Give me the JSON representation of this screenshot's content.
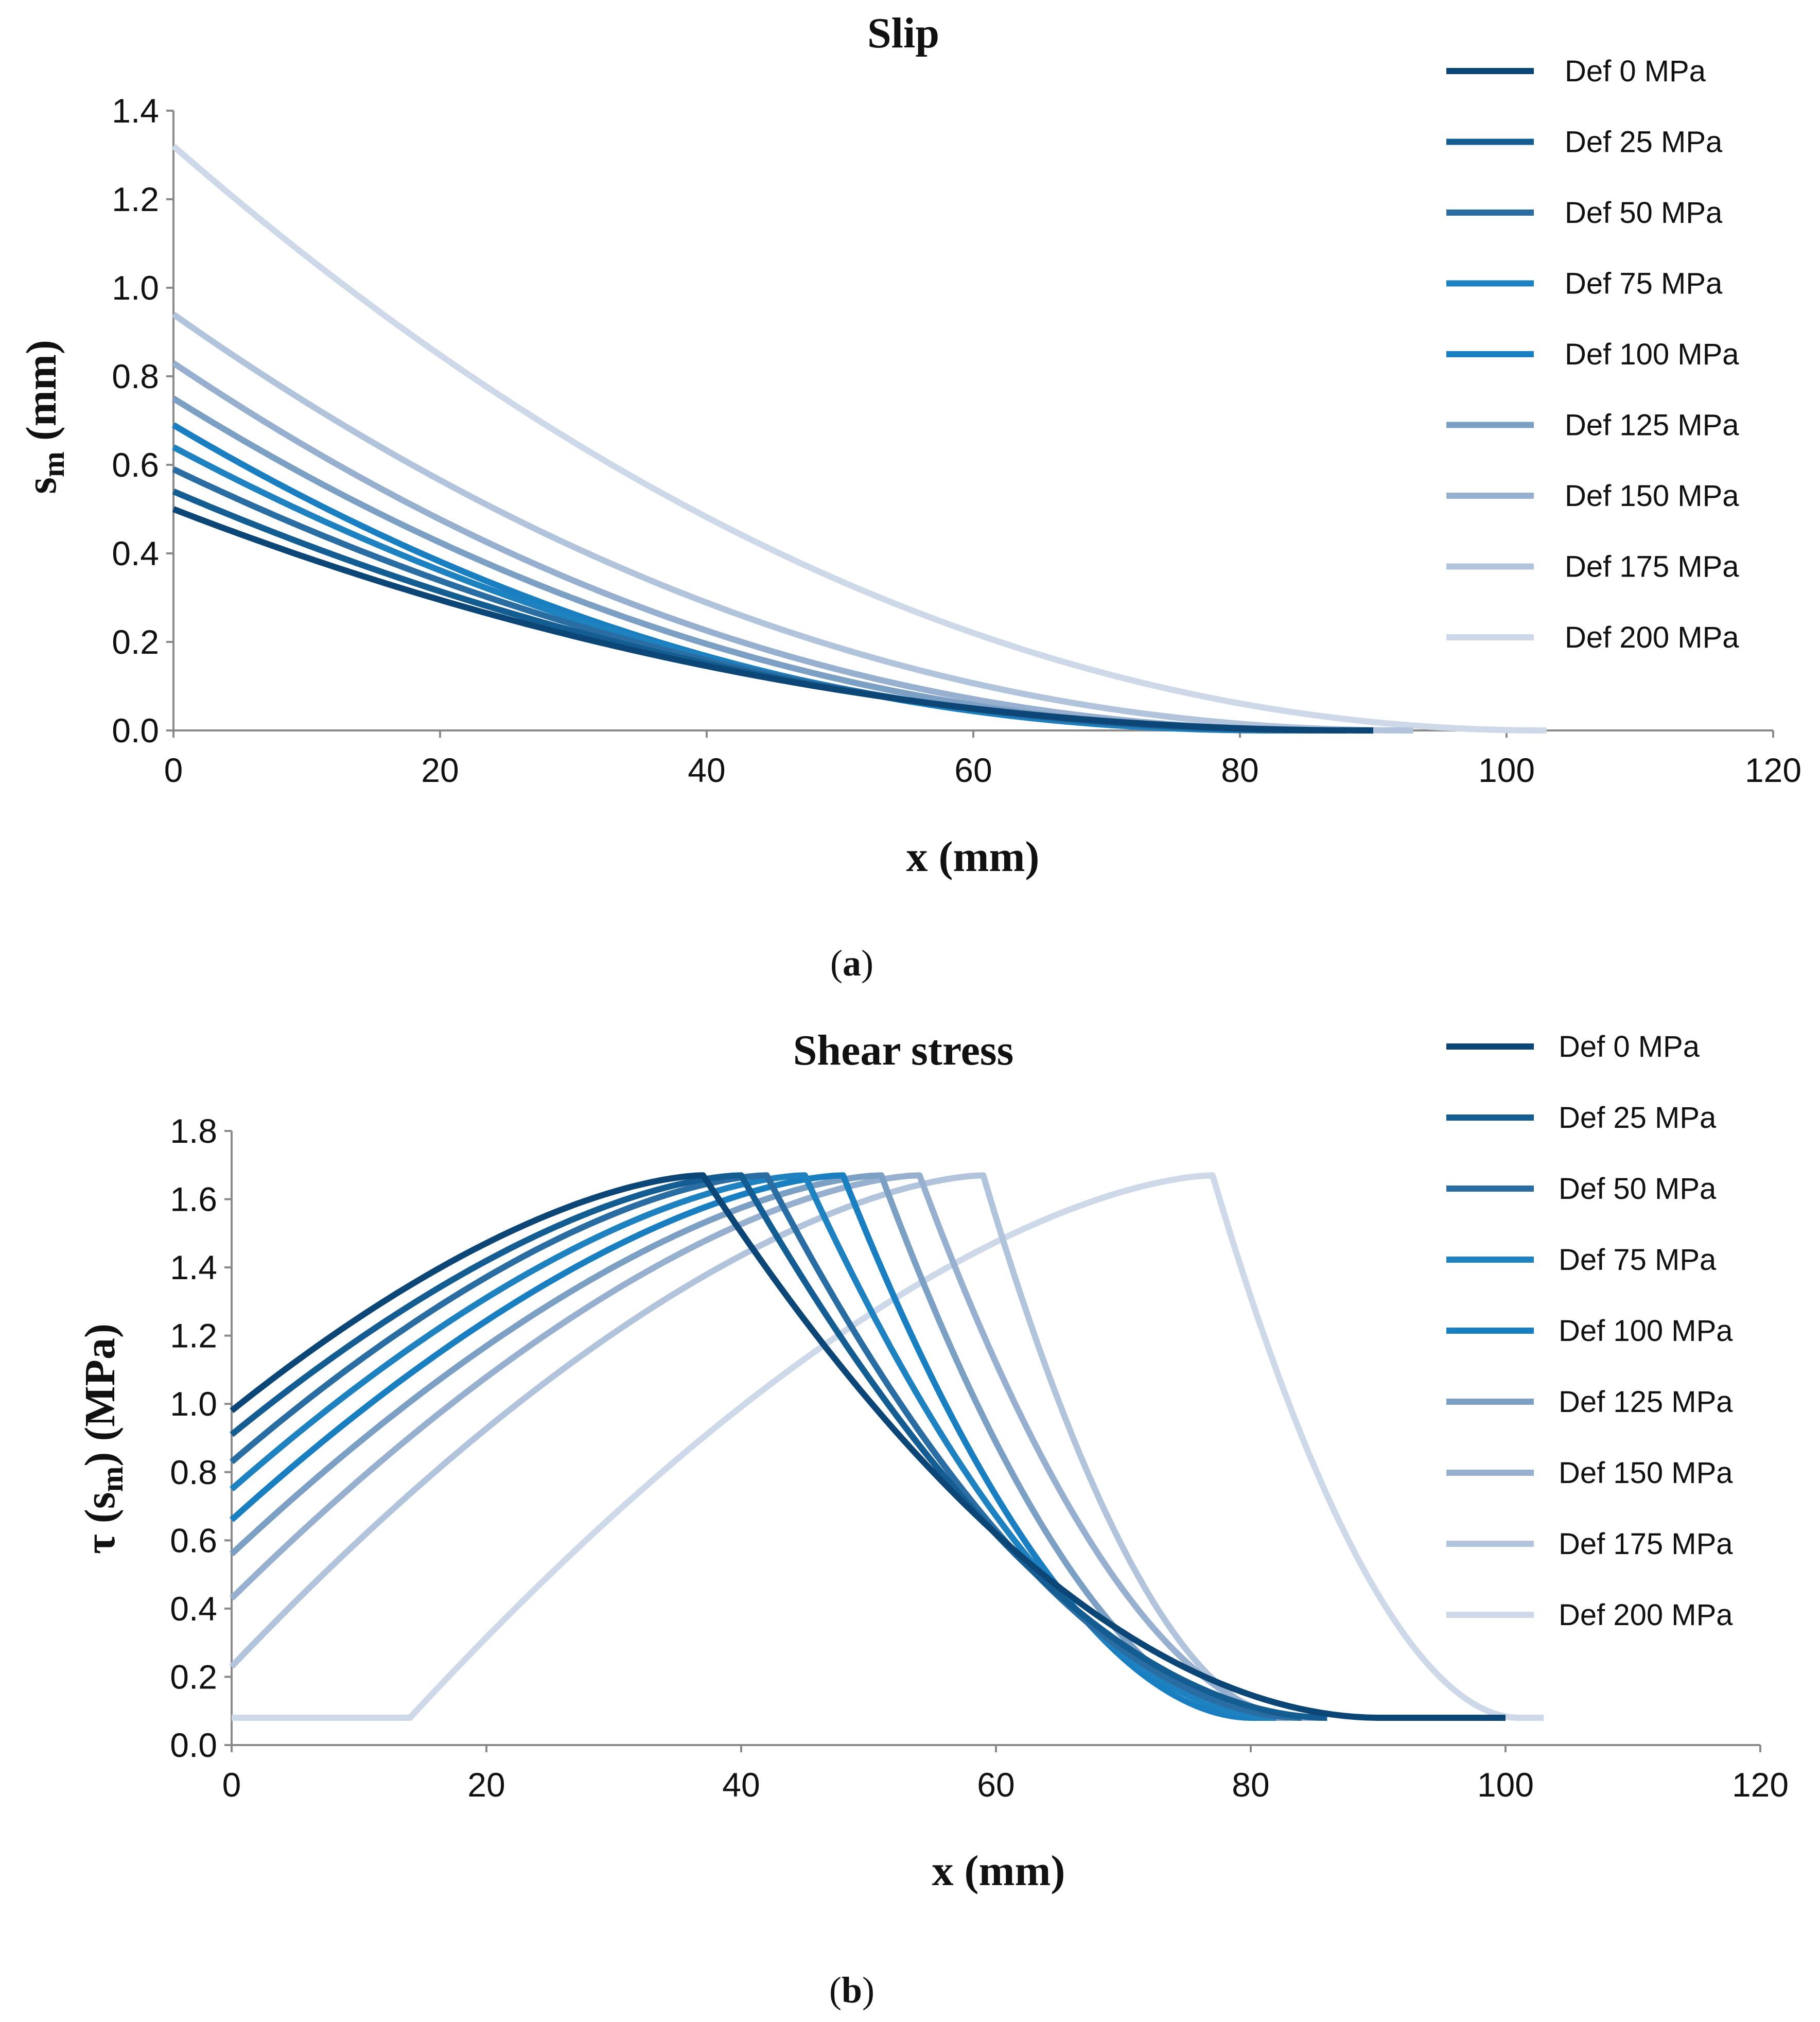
{
  "chart_data": [
    {
      "id": "a",
      "type": "line",
      "title": "Slip",
      "xlabel": "x (mm)",
      "ylabel": {
        "main": "s",
        "sub": "m",
        "unit": " (mm)"
      },
      "caption": {
        "open": "(",
        "letter": "a",
        "close": ")"
      },
      "xlim": [
        0,
        120
      ],
      "ylim": [
        0,
        1.4
      ],
      "xticks": [
        "0",
        "20",
        "40",
        "60",
        "80",
        "100",
        "120"
      ],
      "yticks": [
        "0.0",
        "0.2",
        "0.4",
        "0.6",
        "0.8",
        "1.0",
        "1.2",
        "1.4"
      ],
      "legend_position": "right",
      "series": [
        {
          "name": "Def  0 MPa",
          "color": "#0c4677",
          "s0": 0.5,
          "L": 90,
          "p": 2.1,
          "tail_end": 90
        },
        {
          "name": "Def  25 MPa",
          "color": "#145d92",
          "s0": 0.54,
          "L": 88,
          "p": 2.1
        },
        {
          "name": "Def  50 MPa",
          "color": "#2a6da3",
          "s0": 0.59,
          "L": 86,
          "p": 2.1
        },
        {
          "name": "Def  75 MPa",
          "color": "#1f82c0",
          "s0": 0.64,
          "L": 84,
          "p": 2.1
        },
        {
          "name": "Def  100 MPa",
          "color": "#1a7fc1",
          "s0": 0.69,
          "L": 83,
          "p": 2.15
        },
        {
          "name": "Def  125 MPa",
          "color": "#7c9fc4",
          "s0": 0.75,
          "L": 86,
          "p": 2.15
        },
        {
          "name": "Def  150 MPa",
          "color": "#97b0d0",
          "s0": 0.83,
          "L": 88,
          "p": 2.15
        },
        {
          "name": "Def  175 MPa",
          "color": "#b1c4dc",
          "s0": 0.94,
          "L": 93,
          "p": 2.1
        },
        {
          "name": "Def  200 MPa",
          "color": "#cdd9e8",
          "s0": 1.32,
          "L": 103,
          "p": 2.05
        }
      ]
    },
    {
      "id": "b",
      "type": "line",
      "title": "Shear stress",
      "xlabel": "x (mm)",
      "ylabel": {
        "pre": "τ (s",
        "sub": "m",
        "post": ") (MPa)"
      },
      "caption": {
        "open": "(",
        "letter": "b",
        "close": ")"
      },
      "xlim": [
        0,
        120
      ],
      "ylim": [
        0,
        1.8
      ],
      "xticks": [
        "0",
        "20",
        "40",
        "60",
        "80",
        "100",
        "120"
      ],
      "yticks": [
        "0.0",
        "0.2",
        "0.4",
        "0.6",
        "0.8",
        "1.0",
        "1.2",
        "1.4",
        "1.6",
        "1.8"
      ],
      "legend_position": "right",
      "tau_peak": 1.67,
      "tau_residual": 0.08,
      "series": [
        {
          "name": "Def  0 MPa",
          "color": "#0c4677",
          "y0": 0.98,
          "xp": 37,
          "xend": 90,
          "xlast": 100
        },
        {
          "name": "Def  25 MPa",
          "color": "#145d92",
          "y0": 0.91,
          "xp": 40,
          "xend": 86,
          "xlast": 86
        },
        {
          "name": "Def  50 MPa",
          "color": "#2a6da3",
          "y0": 0.83,
          "xp": 42,
          "xend": 84,
          "xlast": 84
        },
        {
          "name": "Def  75 MPa",
          "color": "#1f82c0",
          "y0": 0.75,
          "xp": 45,
          "xend": 82,
          "xlast": 82
        },
        {
          "name": "Def  100 MPa",
          "color": "#1a7fc1",
          "y0": 0.66,
          "xp": 48,
          "xend": 80,
          "xlast": 82
        },
        {
          "name": "Def  125 MPa",
          "color": "#7c9fc4",
          "y0": 0.56,
          "xp": 51,
          "xend": 81,
          "xlast": 83
        },
        {
          "name": "Def  150 MPa",
          "color": "#97b0d0",
          "y0": 0.43,
          "xp": 54,
          "xend": 84,
          "xlast": 86
        },
        {
          "name": "Def  175 MPa",
          "color": "#b1c4dc",
          "y0": 0.23,
          "xp": 59,
          "xend": 83,
          "xlast": 84
        },
        {
          "name": "Def  200 MPa",
          "color": "#cdd9e8",
          "y0": 0.08,
          "x_flat_end": 14,
          "xp": 77,
          "xend": 101,
          "xlast": 103
        }
      ]
    }
  ]
}
